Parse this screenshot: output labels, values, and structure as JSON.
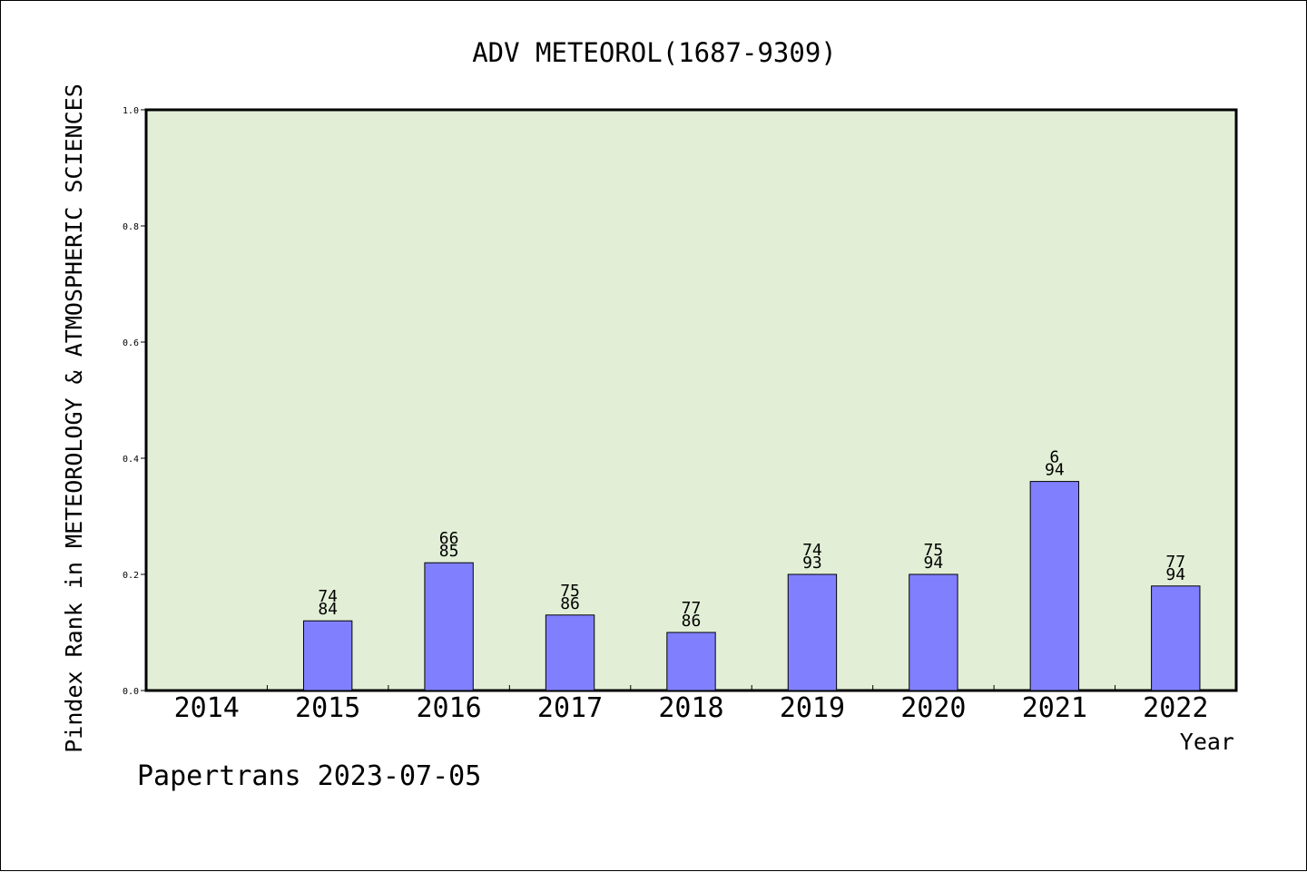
{
  "chart_data": {
    "type": "bar",
    "title": "ADV METEOROL(1687-9309)",
    "xlabel": "Year",
    "ylabel": "Pindex Rank in METEOROLOGY & ATMOSPHERIC SCIENCES",
    "categories": [
      "2014",
      "2015",
      "2016",
      "2017",
      "2018",
      "2019",
      "2020",
      "2021",
      "2022"
    ],
    "values": [
      null,
      0.12,
      0.22,
      0.13,
      0.1,
      0.2,
      0.2,
      0.36,
      0.18
    ],
    "labels_top": [
      "",
      "74",
      "66",
      "75",
      "77",
      "74",
      "75",
      "6",
      "77"
    ],
    "labels_bottom": [
      "",
      "84",
      "85",
      "86",
      "86",
      "93",
      "94",
      "94",
      "94"
    ],
    "ylim": [
      0,
      1.0
    ],
    "yticks": [
      "0.0",
      "0.2",
      "0.4",
      "0.6",
      "0.8",
      "1.0"
    ],
    "grid": false,
    "legend": "none",
    "colors": {
      "plot_background": "#e2efd6",
      "bar_fill": "#8080ff",
      "bar_stroke": "#000000"
    }
  },
  "footer_text": "Papertrans 2023-07-05"
}
